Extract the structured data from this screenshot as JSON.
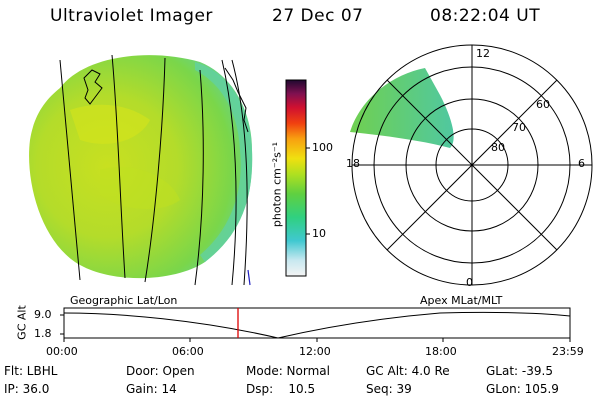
{
  "header": {
    "title": "Ultraviolet Imager",
    "date": "27 Dec 07",
    "time": "08:22:04 UT"
  },
  "colorbar": {
    "unit_label": "photon cm⁻²s⁻¹",
    "tick_100": "100",
    "tick_10": "10"
  },
  "polar": {
    "label_top": "12",
    "label_left": "18",
    "label_right": "6",
    "label_bottom": "0",
    "ring_60": "60",
    "ring_70": "70",
    "ring_80": "80"
  },
  "timeline": {
    "left_caption": "Geographic Lat/Lon",
    "right_caption": "Apex  MLat/MLT",
    "axis_title": "GC Alt",
    "y_top": "9.0",
    "y_bottom": "1.8",
    "time_ticks": [
      "00:00",
      "06:00",
      "12:00",
      "18:00",
      "23:59"
    ],
    "marker_time": "08:22"
  },
  "status": {
    "filter": "Flt: LBHL",
    "door": "Door: Open",
    "mode": "Mode: Normal",
    "gc_alt": "GC Alt: 4.0 Re",
    "glat": "GLat: -39.5",
    "ip": "IP: 36.0",
    "gain": "Gain: 14",
    "dsp": "Dsp:    10.5",
    "seq": "Seq: 39",
    "glon": "GLon: 105.9"
  },
  "colors": {
    "marker": "#dd0000",
    "image_green": "#7ad64a",
    "image_yellow": "#c8e020"
  }
}
